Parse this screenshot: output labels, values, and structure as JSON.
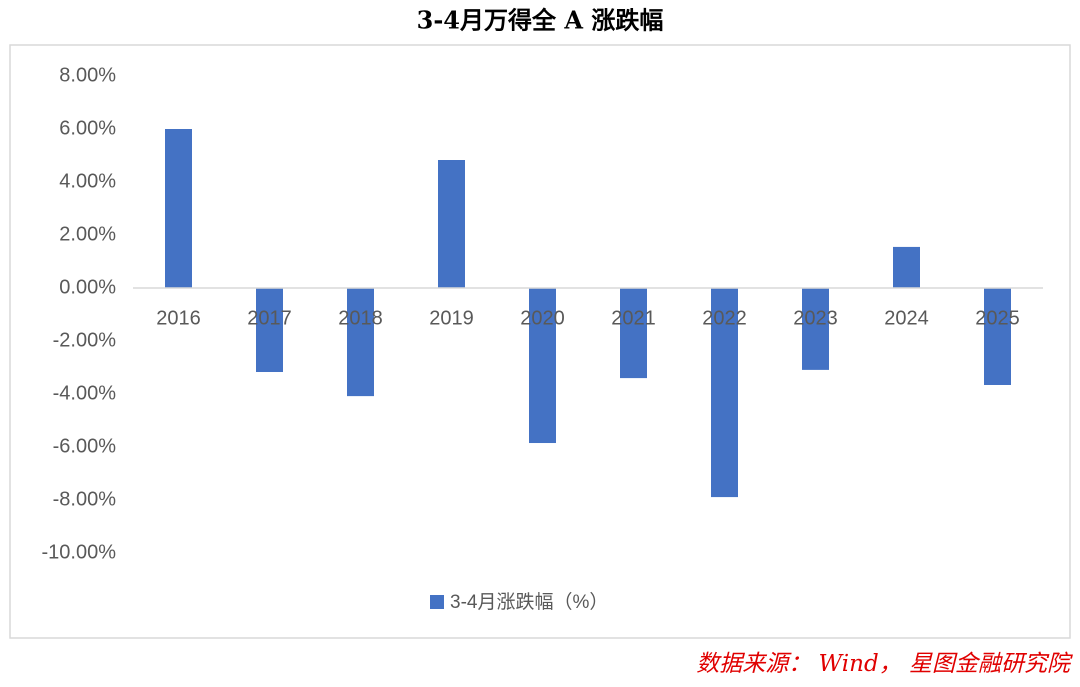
{
  "chart_data": {
    "type": "bar",
    "title": "3-4月万得全 A 涨跌幅",
    "categories": [
      "2016",
      "2017",
      "2018",
      "2019",
      "2020",
      "2021",
      "2022",
      "2023",
      "2024",
      "2025"
    ],
    "series": [
      {
        "name": "3-4月涨跌幅（%）",
        "color": "#4472c4",
        "values": [
          6.0,
          -3.17,
          -4.08,
          4.83,
          -5.85,
          -3.4,
          -7.89,
          -3.09,
          1.55,
          -3.66
        ]
      }
    ],
    "ylim": [
      -10,
      8
    ],
    "yticks": [
      {
        "value": 8,
        "label": "8.00%"
      },
      {
        "value": 6,
        "label": "6.00%"
      },
      {
        "value": 4,
        "label": "4.00%"
      },
      {
        "value": 2,
        "label": "2.00%"
      },
      {
        "value": 0,
        "label": "0.00%"
      },
      {
        "value": -2,
        "label": "-2.00%"
      },
      {
        "value": -4,
        "label": "-4.00%"
      },
      {
        "value": -6,
        "label": "-6.00%"
      },
      {
        "value": -8,
        "label": "-8.00%"
      },
      {
        "value": -10,
        "label": "-10.00%"
      }
    ],
    "grid": false,
    "legend": "bottom",
    "source": "数据来源： Wind， 星图金融研究院"
  }
}
